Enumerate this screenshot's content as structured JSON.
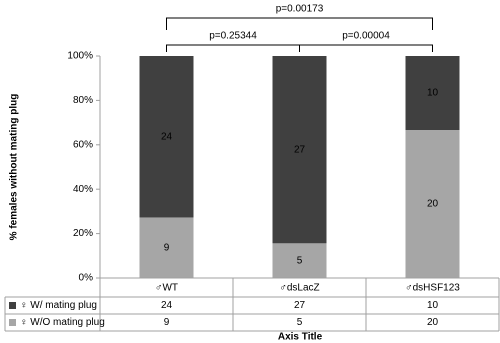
{
  "chart_data": {
    "type": "bar",
    "stacking": "percent",
    "y_label": "% females without mating plug",
    "x_label": "Axis Title",
    "categories": [
      "♂WT",
      "♂dsLacZ",
      "♂dsHSF123"
    ],
    "series": [
      {
        "name": "♀ W/ mating plug",
        "color": "#404040",
        "values": [
          24,
          27,
          10
        ]
      },
      {
        "name": "♀ W/O mating plug",
        "color": "#a6a6a6",
        "values": [
          9,
          5,
          20
        ]
      }
    ],
    "ylim": [
      0,
      100
    ],
    "yticks": [
      {
        "value": 0,
        "label": "0%"
      },
      {
        "value": 20,
        "label": "20%"
      },
      {
        "value": 40,
        "label": "40%"
      },
      {
        "value": 60,
        "label": "60%"
      },
      {
        "value": 80,
        "label": "80%"
      },
      {
        "value": 100,
        "label": "100%"
      }
    ],
    "data_table": true,
    "annotations": [
      {
        "text": "p=0.25344",
        "categories": [
          0,
          1
        ]
      },
      {
        "text": "p=0.00004",
        "categories": [
          1,
          2
        ]
      },
      {
        "text": "p=0.00173",
        "categories": [
          0,
          2
        ]
      }
    ]
  }
}
